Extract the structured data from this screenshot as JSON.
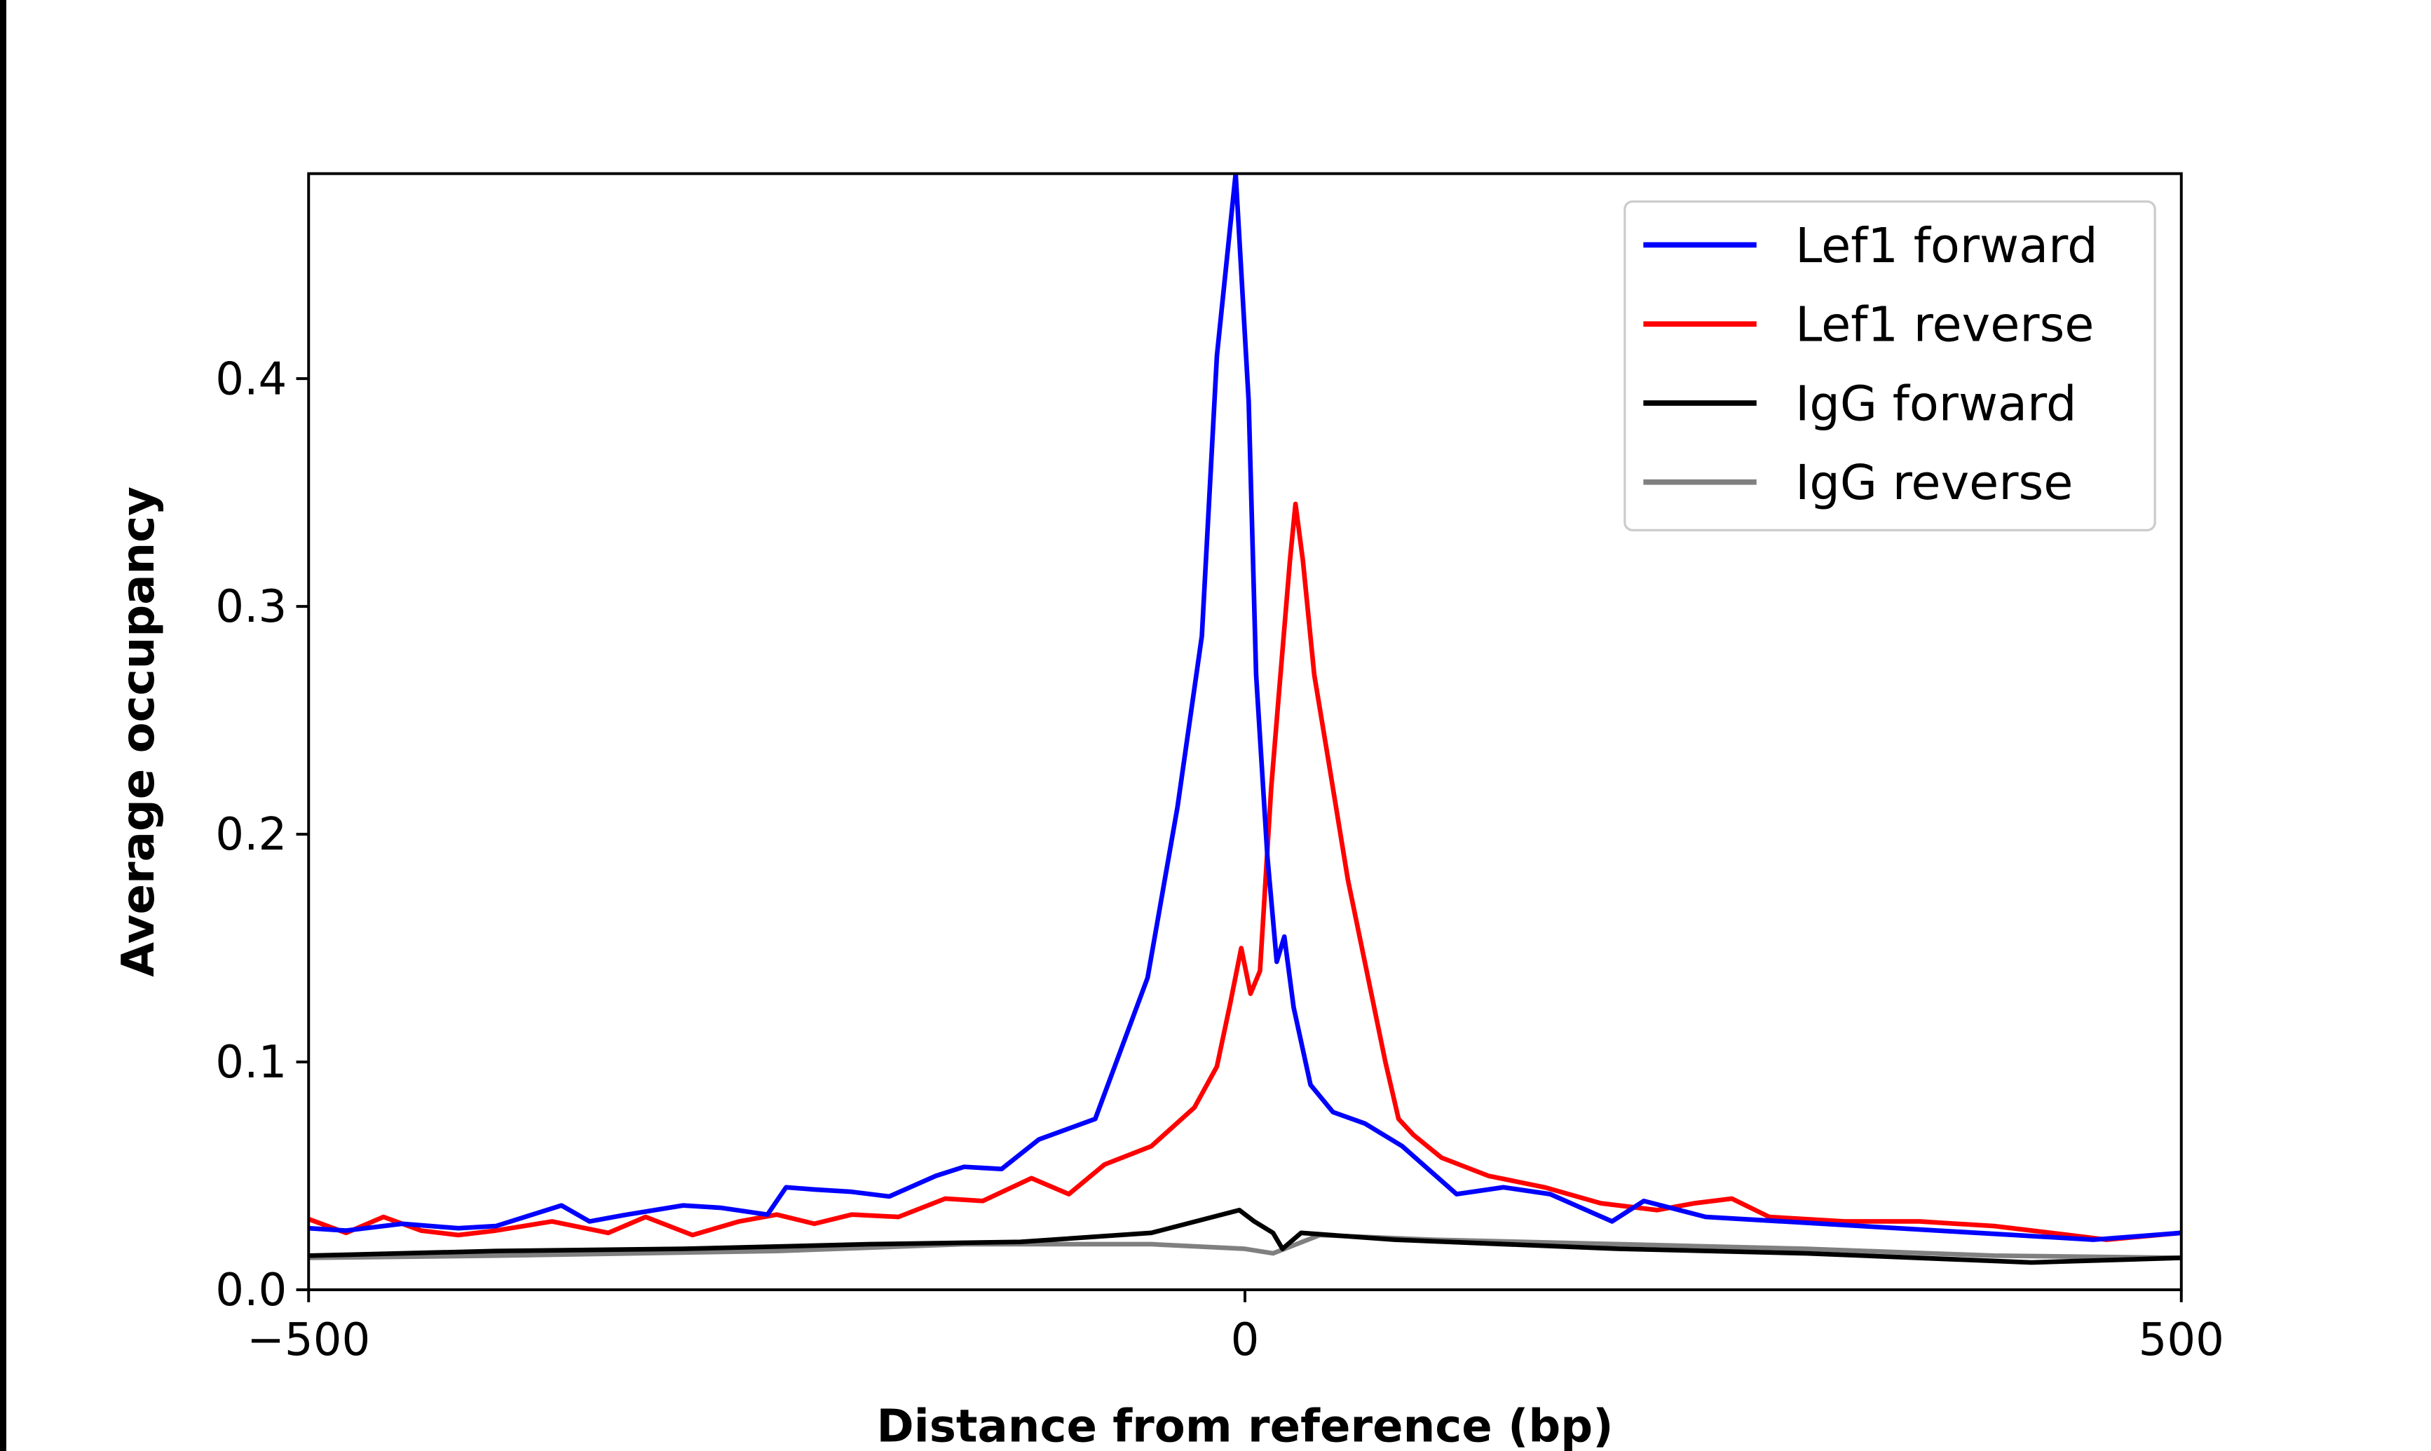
{
  "chart_data": {
    "type": "line",
    "title": "",
    "xlabel": "Distance from reference (bp)",
    "ylabel": "Average occupancy",
    "xlim": [
      -500,
      500
    ],
    "ylim": [
      0,
      0.49
    ],
    "xticks": [
      -500,
      0,
      500
    ],
    "xtick_labels": [
      "−500",
      "0",
      "500"
    ],
    "yticks": [
      0.0,
      0.1,
      0.2,
      0.3,
      0.4
    ],
    "ytick_labels": [
      "0.0",
      "0.1",
      "0.2",
      "0.3",
      "0.4"
    ],
    "grid": false,
    "legend_position": "top-right",
    "series": [
      {
        "name": "Lef1 forward",
        "color": "#0000ff",
        "x": [
          -500,
          -480,
          -450,
          -420,
          -400,
          -365,
          -350,
          -330,
          -300,
          -280,
          -255,
          -245,
          -230,
          -210,
          -190,
          -165,
          -150,
          -130,
          -110,
          -80,
          -70,
          -52,
          -36,
          -23,
          -15,
          -5,
          2,
          6,
          12,
          17,
          21,
          26,
          35,
          47,
          64,
          84,
          113,
          138,
          163,
          196,
          213,
          246,
          287,
          329,
          370,
          411,
          453,
          500
        ],
        "y": [
          0.027,
          0.026,
          0.029,
          0.027,
          0.028,
          0.037,
          0.03,
          0.033,
          0.037,
          0.036,
          0.033,
          0.045,
          0.044,
          0.043,
          0.041,
          0.05,
          0.054,
          0.053,
          0.066,
          0.075,
          0.097,
          0.137,
          0.212,
          0.287,
          0.41,
          0.49,
          0.39,
          0.27,
          0.19,
          0.144,
          0.155,
          0.124,
          0.09,
          0.078,
          0.073,
          0.063,
          0.042,
          0.045,
          0.042,
          0.03,
          0.039,
          0.032,
          0.03,
          0.028,
          0.026,
          0.024,
          0.022,
          0.025
        ]
      },
      {
        "name": "Lef1 reverse",
        "color": "#ff0000",
        "x": [
          -500,
          -480,
          -460,
          -440,
          -420,
          -400,
          -370,
          -340,
          -320,
          -295,
          -270,
          -250,
          -230,
          -210,
          -185,
          -160,
          -140,
          -114,
          -94,
          -75,
          -50,
          -27,
          -15,
          -8,
          -2,
          3,
          8,
          14,
          18,
          24,
          27,
          31,
          37,
          45,
          55,
          65,
          75,
          82,
          90,
          105,
          130,
          160,
          190,
          220,
          240,
          260,
          280,
          320,
          360,
          400,
          440,
          460,
          500
        ],
        "y": [
          0.031,
          0.025,
          0.032,
          0.026,
          0.024,
          0.026,
          0.03,
          0.025,
          0.032,
          0.024,
          0.03,
          0.033,
          0.029,
          0.033,
          0.032,
          0.04,
          0.039,
          0.049,
          0.042,
          0.055,
          0.063,
          0.08,
          0.098,
          0.125,
          0.15,
          0.13,
          0.14,
          0.22,
          0.26,
          0.32,
          0.345,
          0.32,
          0.27,
          0.23,
          0.18,
          0.14,
          0.1,
          0.075,
          0.068,
          0.058,
          0.05,
          0.045,
          0.038,
          0.035,
          0.038,
          0.04,
          0.032,
          0.03,
          0.03,
          0.028,
          0.024,
          0.022,
          0.025
        ]
      },
      {
        "name": "IgG forward",
        "color": "#000000",
        "x": [
          -500,
          -400,
          -300,
          -200,
          -120,
          -50,
          -3,
          5,
          15,
          20,
          30,
          80,
          200,
          300,
          420,
          500
        ],
        "y": [
          0.015,
          0.017,
          0.018,
          0.02,
          0.021,
          0.025,
          0.035,
          0.03,
          0.025,
          0.018,
          0.025,
          0.022,
          0.018,
          0.016,
          0.012,
          0.014
        ]
      },
      {
        "name": "IgG reverse",
        "color": "#808080",
        "x": [
          -500,
          -400,
          -250,
          -150,
          -50,
          0,
          15,
          40,
          100,
          200,
          300,
          400,
          500
        ],
        "y": [
          0.014,
          0.015,
          0.017,
          0.02,
          0.02,
          0.018,
          0.016,
          0.024,
          0.022,
          0.02,
          0.018,
          0.015,
          0.014
        ]
      }
    ]
  }
}
